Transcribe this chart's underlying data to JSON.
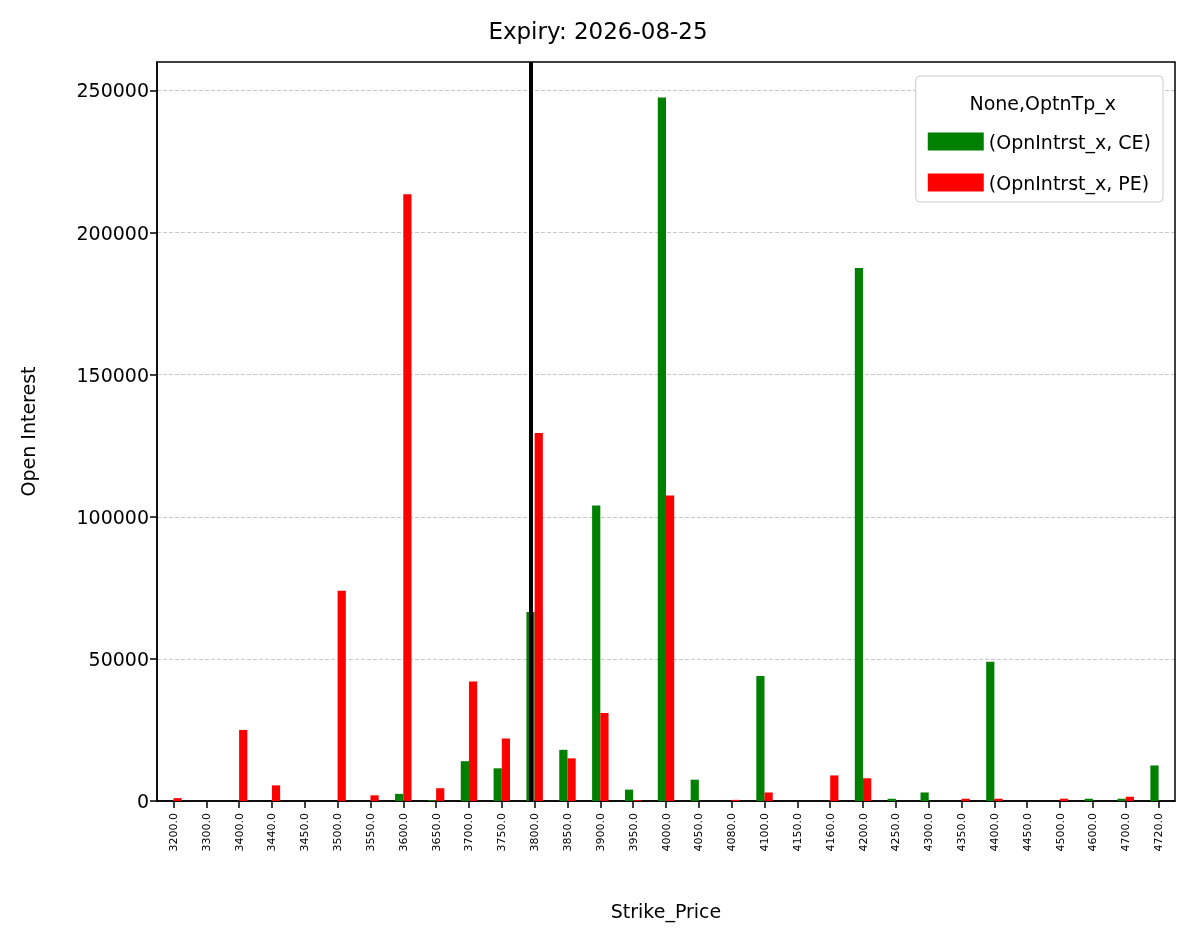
{
  "chart_data": {
    "type": "bar",
    "title": "Expiry: 2026-08-25",
    "xlabel": "Strike_Price",
    "ylabel": "Open Interest",
    "legend_title": "None,OptnTp_x",
    "categories": [
      "3200.0",
      "3300.0",
      "3400.0",
      "3440.0",
      "3450.0",
      "3500.0",
      "3550.0",
      "3600.0",
      "3650.0",
      "3700.0",
      "3750.0",
      "3800.0",
      "3850.0",
      "3900.0",
      "3950.0",
      "4000.0",
      "4050.0",
      "4080.0",
      "4100.0",
      "4150.0",
      "4160.0",
      "4200.0",
      "4250.0",
      "4300.0",
      "4350.0",
      "4400.0",
      "4450.0",
      "4500.0",
      "4600.0",
      "4700.0",
      "4720.0"
    ],
    "series": [
      {
        "name": "(OpnIntrst_x, CE)",
        "color": "#008000",
        "values": [
          null,
          null,
          null,
          null,
          null,
          null,
          null,
          2500,
          300,
          14000,
          11500,
          66500,
          18000,
          104000,
          4000,
          247500,
          7500,
          null,
          44000,
          null,
          null,
          187500,
          800,
          3000,
          null,
          49000,
          null,
          null,
          800,
          800,
          12500
        ]
      },
      {
        "name": "(OpnIntrst_x, PE)",
        "color": "#ff0000",
        "values": [
          1000,
          null,
          25000,
          5500,
          null,
          74000,
          2000,
          213500,
          4500,
          42000,
          22000,
          129500,
          15000,
          31000,
          300,
          107500,
          null,
          400,
          3000,
          null,
          9000,
          8000,
          null,
          null,
          800,
          800,
          null,
          800,
          null,
          1500,
          null
        ]
      }
    ],
    "ylim": [
      0,
      260000
    ],
    "yticks": [
      0,
      50000,
      100000,
      150000,
      200000,
      250000
    ],
    "grid": "y",
    "legend": "top right",
    "ref_lines": [
      {
        "axis": "x",
        "value": "3800.0",
        "color": "#000000"
      }
    ]
  }
}
